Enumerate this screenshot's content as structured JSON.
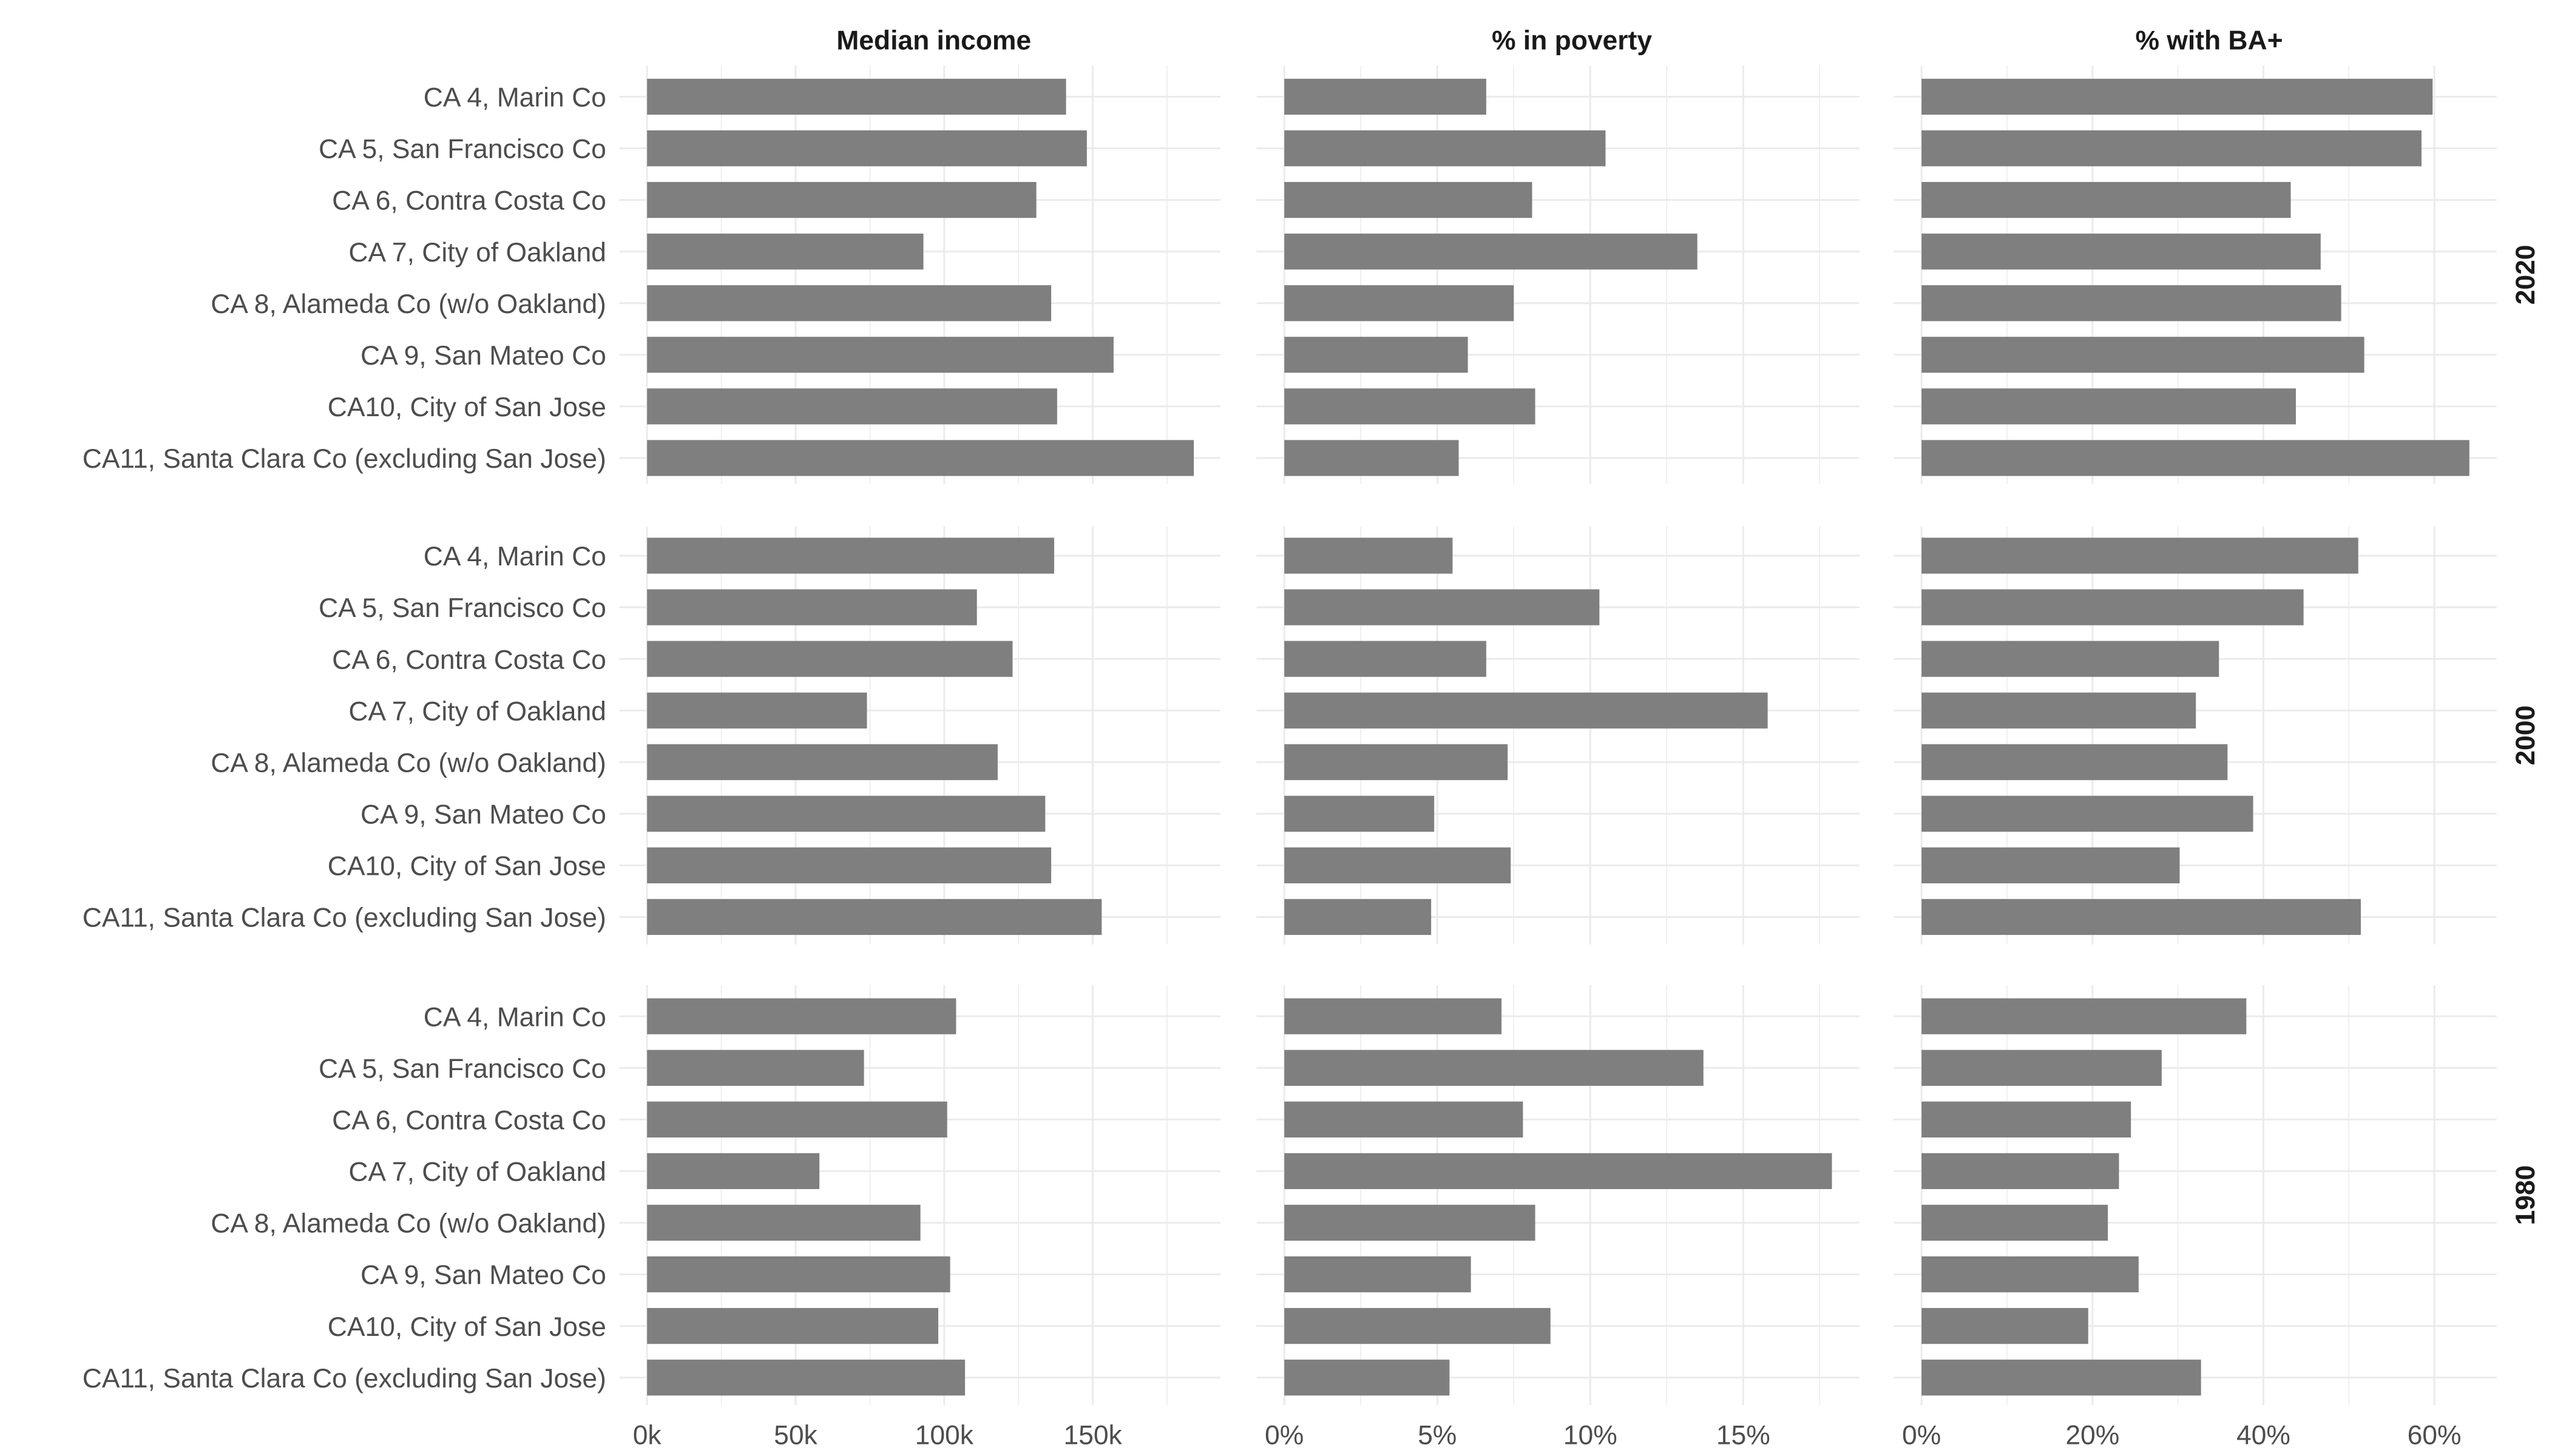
{
  "chart_data": {
    "type": "bar",
    "orientation": "horizontal",
    "categories": [
      "CA 4, Marin Co",
      "CA 5, San Francisco Co",
      "CA 6, Contra Costa Co",
      "CA 7, City of Oakland",
      "CA 8, Alameda Co (w/o Oakland)",
      "CA 9, San Mateo Co",
      "CA10, City of San Jose",
      "CA11, Santa Clara Co (excluding San Jose)"
    ],
    "columns": [
      {
        "title": "Median income",
        "xlim": [
          0,
          193
        ],
        "ticks": [
          0,
          50,
          100,
          150
        ],
        "tick_labels": [
          "0k",
          "50k",
          "100k",
          "150k"
        ]
      },
      {
        "title": "% in poverty",
        "xlim": [
          0,
          18.8
        ],
        "ticks": [
          0,
          5,
          10,
          15
        ],
        "tick_labels": [
          "0%",
          "5%",
          "10%",
          "15%"
        ]
      },
      {
        "title": "% with BA+",
        "xlim": [
          0,
          67.3
        ],
        "ticks": [
          0,
          20,
          40,
          60
        ],
        "tick_labels": [
          "0%",
          "20%",
          "40%",
          "60%"
        ]
      }
    ],
    "rows": [
      {
        "year": "2020",
        "values": [
          [
            141,
            148,
            131,
            93,
            136,
            157,
            138,
            184
          ],
          [
            6.6,
            10.5,
            8.1,
            13.5,
            7.5,
            6.0,
            8.2,
            5.7
          ],
          [
            59.8,
            58.5,
            43.2,
            46.7,
            49.1,
            51.8,
            43.8,
            64.1
          ]
        ]
      },
      {
        "year": "2000",
        "values": [
          [
            137,
            111,
            123,
            74,
            118,
            134,
            136,
            153
          ],
          [
            5.5,
            10.3,
            6.6,
            15.8,
            7.3,
            4.9,
            7.4,
            4.8
          ],
          [
            51.1,
            44.7,
            34.8,
            32.1,
            35.8,
            38.8,
            30.2,
            51.4
          ]
        ]
      },
      {
        "year": "1980",
        "values": [
          [
            104,
            73,
            101,
            58,
            92,
            102,
            98,
            107
          ],
          [
            7.1,
            13.7,
            7.8,
            17.9,
            8.2,
            6.1,
            8.7,
            5.4
          ],
          [
            38.0,
            28.1,
            24.5,
            23.1,
            21.8,
            25.4,
            19.5,
            32.7
          ]
        ]
      }
    ],
    "units": [
      "thousands USD",
      "percent",
      "percent"
    ],
    "grid": true,
    "bar_color": "#7f7f7f",
    "grid_color": "#ebebeb"
  }
}
